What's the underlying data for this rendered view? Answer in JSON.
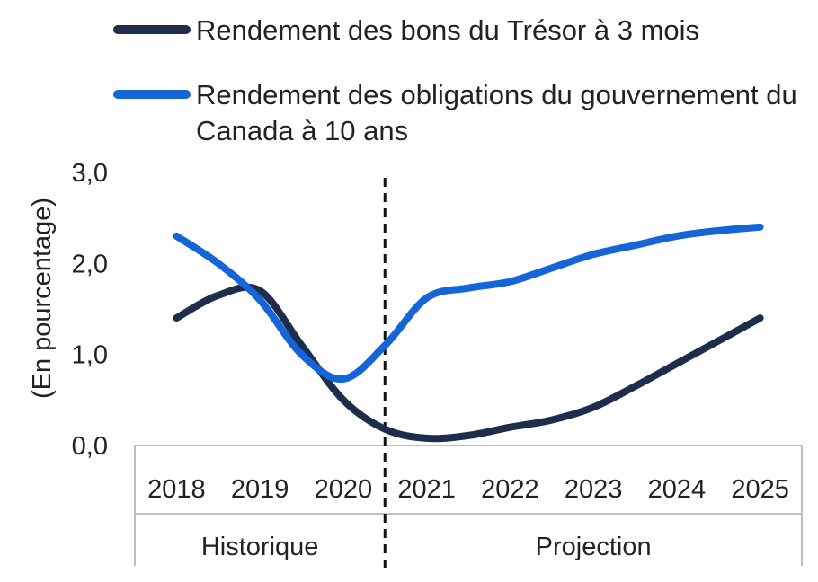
{
  "chart_data": {
    "type": "line",
    "title": "",
    "xlabel": "",
    "ylabel": "(En pourcentage)",
    "x": [
      "2018",
      "2019",
      "2020",
      "2021",
      "2022",
      "2023",
      "2024",
      "2025"
    ],
    "ylim": [
      0,
      3
    ],
    "yticks": [
      "0,0",
      "1,0",
      "2,0",
      "3,0"
    ],
    "grid": false,
    "legend_position": "top",
    "series": [
      {
        "name": "Rendement des bons du Trésor à 3 mois",
        "color": "#1f2d4d",
        "x": [
          2018,
          2018.5,
          2019,
          2019.5,
          2020,
          2020.5,
          2021,
          2021.5,
          2022,
          2022.5,
          2023,
          2023.5,
          2024,
          2024.5,
          2025
        ],
        "values": [
          1.4,
          1.65,
          1.7,
          1.1,
          0.5,
          0.18,
          0.08,
          0.11,
          0.2,
          0.28,
          0.42,
          0.65,
          0.9,
          1.15,
          1.4
        ]
      },
      {
        "name": "Rendement des obligations du gouvernement du Canada à 10 ans",
        "color": "#1565d8",
        "x": [
          2018,
          2018.5,
          2019,
          2019.5,
          2020,
          2020.5,
          2021,
          2021.5,
          2022,
          2022.5,
          2023,
          2023.5,
          2024,
          2024.5,
          2025
        ],
        "values": [
          2.3,
          2.0,
          1.6,
          1.0,
          0.73,
          1.1,
          1.62,
          1.73,
          1.8,
          1.95,
          2.1,
          2.2,
          2.3,
          2.36,
          2.4
        ]
      }
    ],
    "divider_after": "2020",
    "groups": [
      {
        "label": "Historique",
        "categories": [
          "2018",
          "2019",
          "2020"
        ]
      },
      {
        "label": "Projection",
        "categories": [
          "2021",
          "2022",
          "2023",
          "2024",
          "2025"
        ]
      }
    ]
  }
}
